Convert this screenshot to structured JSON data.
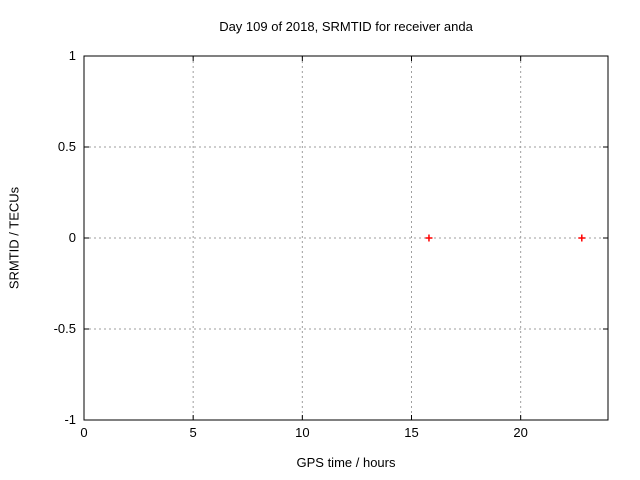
{
  "chart_data": {
    "type": "scatter",
    "title": "Day 109 of 2018, SRMTID for receiver anda",
    "xlabel": "GPS time / hours",
    "ylabel": "SRMTID / TECUs",
    "xlim": [
      0,
      24
    ],
    "ylim": [
      -1,
      1
    ],
    "xticks": [
      0,
      5,
      10,
      15,
      20
    ],
    "yticks": [
      -1,
      -0.5,
      0,
      0.5,
      1
    ],
    "grid": true,
    "legend": "none",
    "series": [
      {
        "name": "SRMTID",
        "marker": "plus",
        "color": "#ff0000",
        "points": [
          {
            "x": 15.8,
            "y": 0
          },
          {
            "x": 22.8,
            "y": 0
          }
        ]
      }
    ],
    "colors": {
      "background": "#ffffff",
      "border": "#000000",
      "grid": "#9e9e9e",
      "text": "#000000",
      "marker": "#ff0000"
    }
  }
}
